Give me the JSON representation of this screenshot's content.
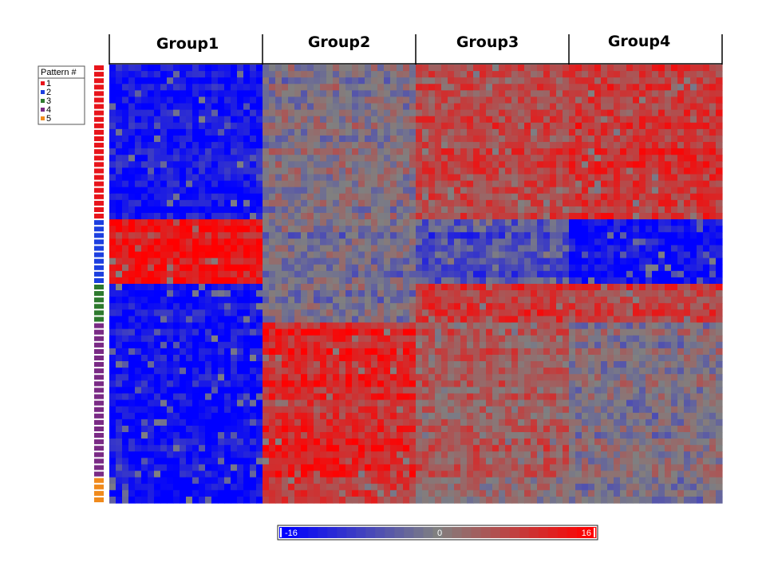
{
  "chart_data": {
    "type": "heatmap",
    "groups": [
      "Group1",
      "Group2",
      "Group3",
      "Group4"
    ],
    "columns_per_group": 24,
    "legend": {
      "title": "Pattern #",
      "entries": [
        {
          "label": "1",
          "color": "#e8141b"
        },
        {
          "label": "2",
          "color": "#1c3fe0"
        },
        {
          "label": "3",
          "color": "#2e7a2e"
        },
        {
          "label": "4",
          "color": "#7a2a85"
        },
        {
          "label": "5",
          "color": "#f08a1c"
        }
      ]
    },
    "patterns": [
      {
        "pattern": "1",
        "rows": 24,
        "group_means": [
          -14,
          0,
          7,
          9
        ]
      },
      {
        "pattern": "2",
        "rows": 10,
        "group_means": [
          13,
          -2,
          -7,
          -15
        ]
      },
      {
        "pattern": "3",
        "rows": 6,
        "group_means": [
          -14,
          -1,
          9,
          8
        ]
      },
      {
        "pattern": "4",
        "rows": 24,
        "group_means": [
          -14,
          11,
          5,
          0
        ]
      },
      {
        "pattern": "5",
        "rows": 4,
        "group_means": [
          -14,
          10,
          3,
          0
        ]
      }
    ],
    "color_scale": {
      "min": -16,
      "mid": 0,
      "max": 16,
      "min_label": "-16",
      "mid_label": "0",
      "max_label": "16",
      "low_color": "#0000ff",
      "mid_color": "#808080",
      "high_color": "#ff0000"
    }
  }
}
